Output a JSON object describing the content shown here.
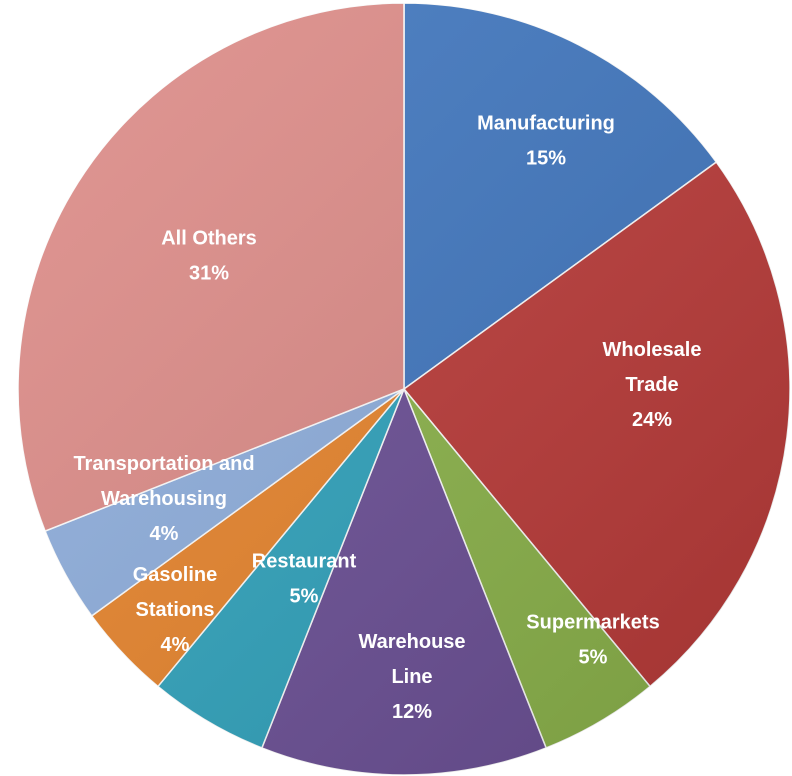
{
  "chart_data": {
    "type": "pie",
    "categories": [
      "Manufacturing",
      "Wholesale Trade",
      "Supermarkets",
      "Warehouse Line",
      "Restaurant",
      "Gasoline Stations",
      "Transportation and Warehousing",
      "All Others"
    ],
    "values": [
      15,
      24,
      5,
      12,
      5,
      4,
      4,
      31
    ],
    "data_labels": [
      "15%",
      "24%",
      "5%",
      "12%",
      "5%",
      "4%",
      "4%",
      "31%"
    ],
    "label_lines": [
      [
        "Manufacturing",
        "15%"
      ],
      [
        "Wholesale",
        "Trade",
        "24%"
      ],
      [
        "Supermarkets",
        "5%"
      ],
      [
        "Warehouse",
        "Line",
        "12%"
      ],
      [
        "Restaurant",
        "5%"
      ],
      [
        "Gasoline",
        "Stations",
        "4%"
      ],
      [
        "Transportation and",
        "Warehousing",
        "4%"
      ],
      [
        "All Others",
        "31%"
      ]
    ],
    "colors": [
      "#3f76bf",
      "#bb3a38",
      "#8cb44a",
      "#6b4f96",
      "#2fa3bd",
      "#e8842b",
      "#8eaedd",
      "#dd8b87"
    ],
    "legend": "none",
    "start_angle": "12 o'clock",
    "direction": "clockwise"
  }
}
